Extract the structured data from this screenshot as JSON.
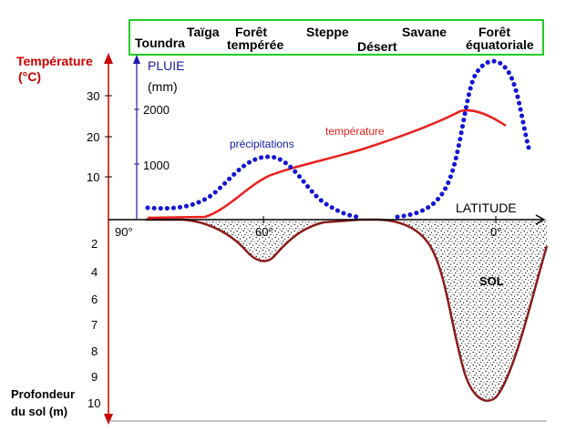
{
  "biomes": [
    {
      "name": "Toundra",
      "line": 1
    },
    {
      "name": "Taïga",
      "line": 0
    },
    {
      "name": "Forêt\ntempérée",
      "line": 0
    },
    {
      "name": "Steppe",
      "line": 0
    },
    {
      "name": "Désert",
      "line": 1
    },
    {
      "name": "Savane",
      "line": 0
    },
    {
      "name": "Forêt\néquatoriale",
      "line": 0
    }
  ],
  "labels": {
    "temp_axis_1": "Température",
    "temp_axis_2": "(°C)",
    "rain_axis_1": "PLUIE",
    "rain_axis_2": "(mm)",
    "precip": "précipitations",
    "temperature": "température",
    "latitude": "LATITUDE",
    "soil": "SOL",
    "depth_1": "Profondeur",
    "depth_2": "du sol (m)"
  },
  "ticks": {
    "temperature": [
      "10",
      "20",
      "30"
    ],
    "rain": [
      "1000",
      "2000"
    ],
    "latitude": [
      "90°",
      "60°",
      "0°"
    ],
    "depth": [
      "2",
      "4",
      "6",
      "7",
      "8",
      "9",
      "10"
    ]
  },
  "colors": {
    "temperature": "#e8201c",
    "precipitation": "#1414d4",
    "soil": "#8a1a1a",
    "frame": "#22cc22",
    "axis_red": "#cc0000"
  }
}
